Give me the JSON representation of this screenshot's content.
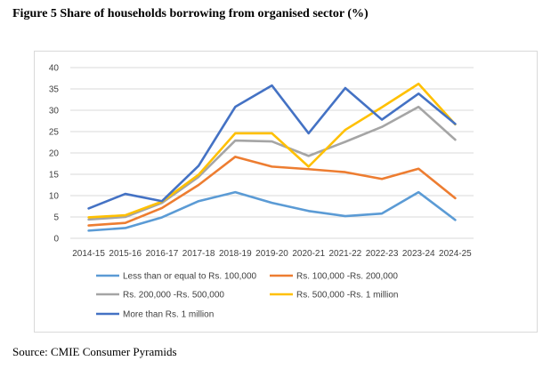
{
  "figure_title": "Figure 5 Share of households borrowing from organised sector (%)",
  "source": "Source: CMIE Consumer Pyramids",
  "chart_data": {
    "type": "line",
    "title": "Figure 5 Share of households borrowing from organised sector (%)",
    "xlabel": "",
    "ylabel": "",
    "ylim": [
      0,
      40
    ],
    "yticks": [
      "0",
      "5",
      "10",
      "15",
      "20",
      "25",
      "30",
      "35",
      "40"
    ],
    "grid": true,
    "legend_position": "bottom",
    "categories": [
      "2014-15",
      "2015-16",
      "2016-17",
      "2017-18",
      "2018-19",
      "2019-20",
      "2020-21",
      "2021-22",
      "2022-23",
      "2023-24",
      "2024-25"
    ],
    "series": [
      {
        "name": "Less than or equal  to Rs. 100,000",
        "color": "#5b9bd5",
        "values": [
          1.8,
          2.4,
          4.9,
          8.7,
          10.8,
          8.3,
          6.4,
          5.2,
          5.8,
          10.8,
          4.3
        ]
      },
      {
        "name": "Rs. 100,000 -Rs.  200,000",
        "color": "#ed7d31",
        "values": [
          3.0,
          3.6,
          7.1,
          12.5,
          19.1,
          16.8,
          16.2,
          15.5,
          13.9,
          16.3,
          9.4
        ]
      },
      {
        "name": "Rs. 200,000 -Rs.  500,000",
        "color": "#a5a5a5",
        "values": [
          4.4,
          5.0,
          8.3,
          14.4,
          22.9,
          22.7,
          19.3,
          22.6,
          26.1,
          30.8,
          23.1
        ]
      },
      {
        "name": "Rs. 500,000 -Rs. 1  million",
        "color": "#ffc000",
        "values": [
          4.9,
          5.4,
          8.6,
          14.9,
          24.6,
          24.6,
          16.8,
          25.4,
          30.7,
          36.2,
          26.7
        ]
      },
      {
        "name": "More than Rs. 1  million",
        "color": "#4472c4",
        "values": [
          7.0,
          10.4,
          8.7,
          17.0,
          30.8,
          35.8,
          24.6,
          35.2,
          27.8,
          33.9,
          26.8
        ]
      }
    ]
  }
}
